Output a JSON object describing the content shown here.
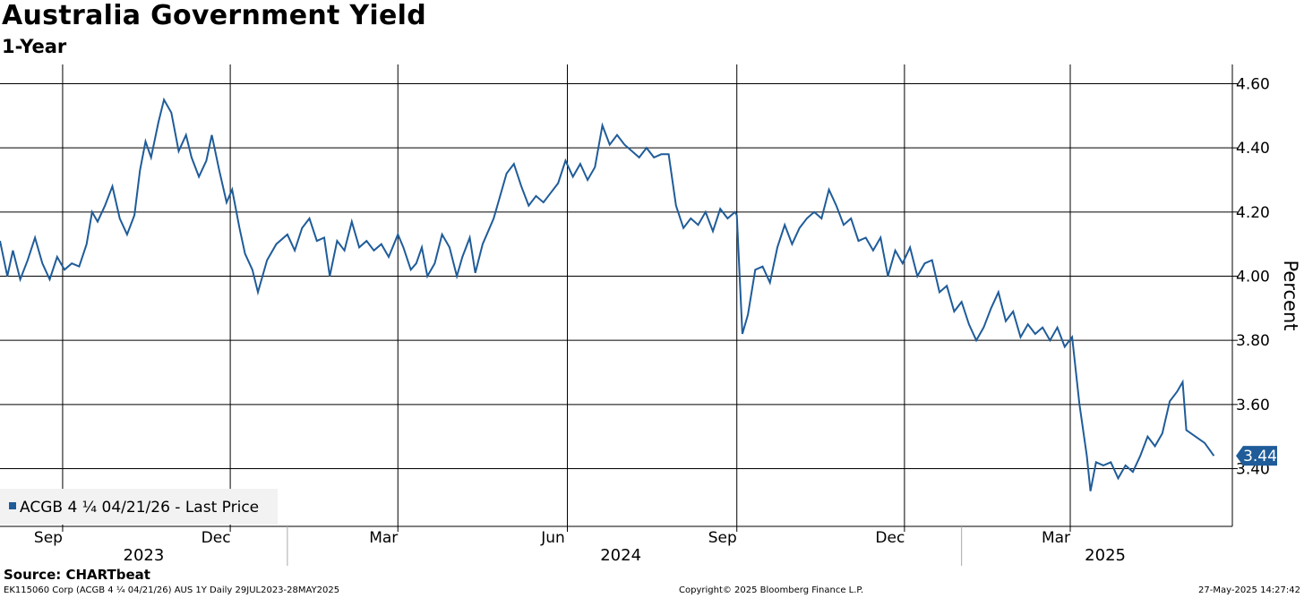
{
  "chart_data": {
    "type": "line",
    "title": "Australia Government Yield",
    "subtitle": "1-Year",
    "ylabel": "Percent",
    "xlabel": "",
    "ylim": [
      3.22,
      4.66
    ],
    "yticks": [
      3.4,
      3.6,
      3.8,
      4.0,
      4.2,
      4.4,
      4.6
    ],
    "ytick_labels": [
      "3.40",
      "3.60",
      "3.80",
      "4.00",
      "4.20",
      "4.40",
      "4.60"
    ],
    "xlim": [
      "2023-07-29",
      "2025-05-28"
    ],
    "x_ticks": [
      {
        "date": "2023-09-01",
        "label": "Sep"
      },
      {
        "date": "2023-12-01",
        "label": "Dec"
      },
      {
        "date": "2024-03-01",
        "label": "Mar"
      },
      {
        "date": "2024-06-01",
        "label": "Jun"
      },
      {
        "date": "2024-09-01",
        "label": "Sep"
      },
      {
        "date": "2024-12-01",
        "label": "Dec"
      },
      {
        "date": "2025-03-01",
        "label": "Mar"
      }
    ],
    "year_labels": [
      {
        "label": "2023",
        "center": "2023-10-15"
      },
      {
        "label": "2024",
        "center": "2024-06-30"
      },
      {
        "label": "2025",
        "center": "2025-03-20"
      }
    ],
    "year_separators": [
      "2024-01-01",
      "2025-01-01"
    ],
    "grid": true,
    "legend": {
      "position": "bottom-left",
      "entries": [
        "ACGB 4 ¼ 04/21/26 - Last Price"
      ]
    },
    "last_value_label": "3.44",
    "line_color": "#1f5c99",
    "series": [
      {
        "name": "ACGB 4 ¼ 04/21/26 - Last Price",
        "points": [
          [
            "2023-07-29",
            4.11
          ],
          [
            "2023-08-02",
            4.0
          ],
          [
            "2023-08-05",
            4.08
          ],
          [
            "2023-08-09",
            3.99
          ],
          [
            "2023-08-13",
            4.05
          ],
          [
            "2023-08-17",
            4.12
          ],
          [
            "2023-08-21",
            4.04
          ],
          [
            "2023-08-25",
            3.99
          ],
          [
            "2023-08-29",
            4.06
          ],
          [
            "2023-09-02",
            4.02
          ],
          [
            "2023-09-06",
            4.04
          ],
          [
            "2023-09-10",
            4.03
          ],
          [
            "2023-09-14",
            4.1
          ],
          [
            "2023-09-17",
            4.2
          ],
          [
            "2023-09-20",
            4.17
          ],
          [
            "2023-09-24",
            4.22
          ],
          [
            "2023-09-28",
            4.28
          ],
          [
            "2023-10-02",
            4.18
          ],
          [
            "2023-10-06",
            4.13
          ],
          [
            "2023-10-10",
            4.19
          ],
          [
            "2023-10-13",
            4.33
          ],
          [
            "2023-10-16",
            4.42
          ],
          [
            "2023-10-19",
            4.37
          ],
          [
            "2023-10-23",
            4.48
          ],
          [
            "2023-10-26",
            4.55
          ],
          [
            "2023-10-30",
            4.51
          ],
          [
            "2023-11-03",
            4.39
          ],
          [
            "2023-11-07",
            4.44
          ],
          [
            "2023-11-10",
            4.37
          ],
          [
            "2023-11-14",
            4.31
          ],
          [
            "2023-11-18",
            4.36
          ],
          [
            "2023-11-21",
            4.44
          ],
          [
            "2023-11-25",
            4.33
          ],
          [
            "2023-11-29",
            4.23
          ],
          [
            "2023-12-02",
            4.27
          ],
          [
            "2023-12-06",
            4.15
          ],
          [
            "2023-12-09",
            4.07
          ],
          [
            "2023-12-13",
            4.02
          ],
          [
            "2023-12-16",
            3.95
          ],
          [
            "2023-12-21",
            4.05
          ],
          [
            "2023-12-26",
            4.1
          ],
          [
            "2024-01-01",
            4.13
          ],
          [
            "2024-01-05",
            4.08
          ],
          [
            "2024-01-09",
            4.15
          ],
          [
            "2024-01-13",
            4.18
          ],
          [
            "2024-01-17",
            4.11
          ],
          [
            "2024-01-21",
            4.12
          ],
          [
            "2024-01-24",
            4.0
          ],
          [
            "2024-01-28",
            4.11
          ],
          [
            "2024-02-01",
            4.08
          ],
          [
            "2024-02-05",
            4.17
          ],
          [
            "2024-02-09",
            4.09
          ],
          [
            "2024-02-13",
            4.11
          ],
          [
            "2024-02-17",
            4.08
          ],
          [
            "2024-02-21",
            4.1
          ],
          [
            "2024-02-25",
            4.06
          ],
          [
            "2024-03-01",
            4.13
          ],
          [
            "2024-03-04",
            4.09
          ],
          [
            "2024-03-08",
            4.02
          ],
          [
            "2024-03-11",
            4.04
          ],
          [
            "2024-03-14",
            4.09
          ],
          [
            "2024-03-17",
            4.0
          ],
          [
            "2024-03-21",
            4.04
          ],
          [
            "2024-03-25",
            4.13
          ],
          [
            "2024-03-29",
            4.09
          ],
          [
            "2024-04-02",
            4.0
          ],
          [
            "2024-04-05",
            4.06
          ],
          [
            "2024-04-09",
            4.12
          ],
          [
            "2024-04-12",
            4.01
          ],
          [
            "2024-04-16",
            4.1
          ],
          [
            "2024-04-19",
            4.14
          ],
          [
            "2024-04-22",
            4.18
          ],
          [
            "2024-04-25",
            4.24
          ],
          [
            "2024-04-29",
            4.32
          ],
          [
            "2024-05-03",
            4.35
          ],
          [
            "2024-05-07",
            4.28
          ],
          [
            "2024-05-11",
            4.22
          ],
          [
            "2024-05-15",
            4.25
          ],
          [
            "2024-05-19",
            4.23
          ],
          [
            "2024-05-23",
            4.26
          ],
          [
            "2024-05-27",
            4.29
          ],
          [
            "2024-05-31",
            4.36
          ],
          [
            "2024-06-04",
            4.31
          ],
          [
            "2024-06-08",
            4.35
          ],
          [
            "2024-06-12",
            4.3
          ],
          [
            "2024-06-16",
            4.34
          ],
          [
            "2024-06-20",
            4.47
          ],
          [
            "2024-06-24",
            4.41
          ],
          [
            "2024-06-28",
            4.44
          ],
          [
            "2024-07-02",
            4.41
          ],
          [
            "2024-07-06",
            4.39
          ],
          [
            "2024-07-10",
            4.37
          ],
          [
            "2024-07-14",
            4.4
          ],
          [
            "2024-07-18",
            4.37
          ],
          [
            "2024-07-22",
            4.38
          ],
          [
            "2024-07-26",
            4.38
          ],
          [
            "2024-07-30",
            4.22
          ],
          [
            "2024-08-03",
            4.15
          ],
          [
            "2024-08-07",
            4.18
          ],
          [
            "2024-08-11",
            4.16
          ],
          [
            "2024-08-15",
            4.2
          ],
          [
            "2024-08-19",
            4.14
          ],
          [
            "2024-08-23",
            4.21
          ],
          [
            "2024-08-27",
            4.18
          ],
          [
            "2024-08-31",
            4.2
          ],
          [
            "2024-09-01",
            4.19
          ],
          [
            "2024-09-04",
            3.82
          ],
          [
            "2024-09-07",
            3.88
          ],
          [
            "2024-09-11",
            4.02
          ],
          [
            "2024-09-15",
            4.03
          ],
          [
            "2024-09-19",
            3.98
          ],
          [
            "2024-09-23",
            4.09
          ],
          [
            "2024-09-27",
            4.16
          ],
          [
            "2024-10-01",
            4.1
          ],
          [
            "2024-10-05",
            4.15
          ],
          [
            "2024-10-09",
            4.18
          ],
          [
            "2024-10-13",
            4.2
          ],
          [
            "2024-10-17",
            4.18
          ],
          [
            "2024-10-21",
            4.27
          ],
          [
            "2024-10-25",
            4.22
          ],
          [
            "2024-10-29",
            4.16
          ],
          [
            "2024-11-02",
            4.18
          ],
          [
            "2024-11-06",
            4.11
          ],
          [
            "2024-11-10",
            4.12
          ],
          [
            "2024-11-14",
            4.08
          ],
          [
            "2024-11-18",
            4.12
          ],
          [
            "2024-11-22",
            4.0
          ],
          [
            "2024-11-26",
            4.08
          ],
          [
            "2024-11-30",
            4.04
          ],
          [
            "2024-12-04",
            4.09
          ],
          [
            "2024-12-08",
            4.0
          ],
          [
            "2024-12-12",
            4.04
          ],
          [
            "2024-12-16",
            4.05
          ],
          [
            "2024-12-20",
            3.95
          ],
          [
            "2024-12-24",
            3.97
          ],
          [
            "2024-12-28",
            3.89
          ],
          [
            "2025-01-01",
            3.92
          ],
          [
            "2025-01-05",
            3.85
          ],
          [
            "2025-01-09",
            3.8
          ],
          [
            "2025-01-13",
            3.84
          ],
          [
            "2025-01-17",
            3.9
          ],
          [
            "2025-01-21",
            3.95
          ],
          [
            "2025-01-25",
            3.86
          ],
          [
            "2025-01-29",
            3.89
          ],
          [
            "2025-02-02",
            3.81
          ],
          [
            "2025-02-06",
            3.85
          ],
          [
            "2025-02-10",
            3.82
          ],
          [
            "2025-02-14",
            3.84
          ],
          [
            "2025-02-18",
            3.8
          ],
          [
            "2025-02-22",
            3.84
          ],
          [
            "2025-02-26",
            3.78
          ],
          [
            "2025-03-02",
            3.81
          ],
          [
            "2025-03-06",
            3.6
          ],
          [
            "2025-03-10",
            3.44
          ],
          [
            "2025-03-12",
            3.33
          ],
          [
            "2025-03-15",
            3.42
          ],
          [
            "2025-03-19",
            3.41
          ],
          [
            "2025-03-23",
            3.42
          ],
          [
            "2025-03-27",
            3.37
          ],
          [
            "2025-03-31",
            3.41
          ],
          [
            "2025-04-04",
            3.39
          ],
          [
            "2025-04-08",
            3.44
          ],
          [
            "2025-04-12",
            3.5
          ],
          [
            "2025-04-16",
            3.47
          ],
          [
            "2025-04-20",
            3.51
          ],
          [
            "2025-04-24",
            3.61
          ],
          [
            "2025-04-28",
            3.64
          ],
          [
            "2025-05-01",
            3.67
          ],
          [
            "2025-05-03",
            3.52
          ],
          [
            "2025-05-08",
            3.5
          ],
          [
            "2025-05-13",
            3.48
          ],
          [
            "2025-05-18",
            3.44
          ]
        ]
      }
    ]
  },
  "source": "Source: CHARTbeat",
  "footer": {
    "left": "EK115060 Corp (ACGB 4 ¼ 04/21/26) AUS 1Y  Daily 29JUL2023-28MAY2025",
    "center": "Copyright© 2025 Bloomberg Finance L.P.",
    "right": "27-May-2025 14:27:42"
  }
}
